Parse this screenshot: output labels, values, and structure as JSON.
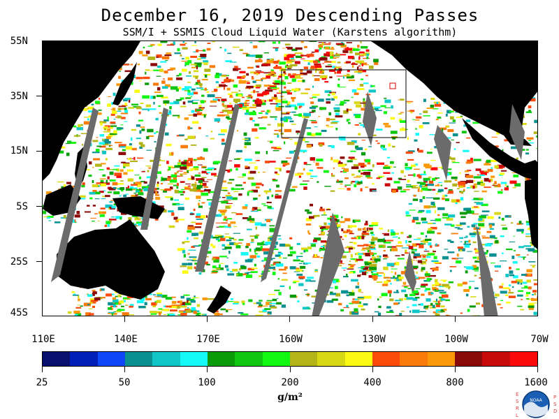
{
  "header": {
    "title": "December 16, 2019  Descending Passes",
    "subtitle": "SSM/I + SSMIS Cloud Liquid Water (Karstens algorithm)"
  },
  "map": {
    "lat_labels": [
      "55N",
      "35N",
      "15N",
      "5S",
      "25S",
      "45S"
    ],
    "lon_labels": [
      "110E",
      "140E",
      "170E",
      "160W",
      "130W",
      "100W",
      "70W"
    ],
    "land_color": "#000000",
    "no_data_color": "#6b6b6b",
    "clear_color": "#ffffff"
  },
  "legend": {
    "colors": [
      "#08106e",
      "#0020b8",
      "#0e48f6",
      "#0a9090",
      "#11c6c6",
      "#16f8f8",
      "#0a9a0a",
      "#10c610",
      "#12f812",
      "#b4b418",
      "#d8d814",
      "#fafa12",
      "#fa4a0c",
      "#fa7a0a",
      "#fa9a0a",
      "#8a0a0a",
      "#c80a0a",
      "#fa0a0a"
    ],
    "labels": [
      "25",
      "50",
      "100",
      "200",
      "400",
      "800",
      "1600"
    ],
    "units": "g/m²"
  },
  "logo": {
    "left_text": "ESRL",
    "right_text": "PSD",
    "center_text": "NOAA"
  }
}
